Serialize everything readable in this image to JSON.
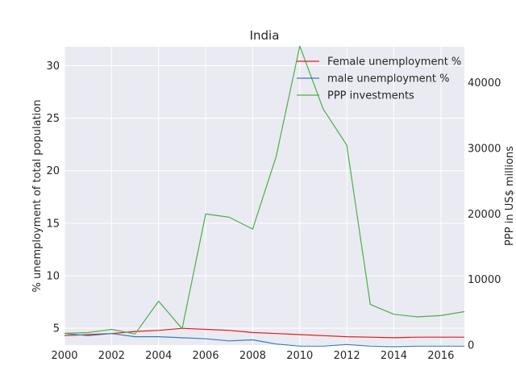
{
  "chart_data": {
    "type": "line",
    "title": "India",
    "xlabel": "",
    "ylabel": "% unemployment of total population",
    "y2label": "PPP in US$ millions",
    "x": [
      2000,
      2001,
      2002,
      2003,
      2004,
      2005,
      2006,
      2007,
      2008,
      2009,
      2010,
      2011,
      2012,
      2013,
      2014,
      2015,
      2016,
      2017
    ],
    "xlim": [
      2000,
      2017
    ],
    "ylim": [
      3.4,
      31.8
    ],
    "y2lim": [
      0,
      45500
    ],
    "xticks": [
      "2000",
      "2002",
      "2004",
      "2006",
      "2008",
      "2010",
      "2012",
      "2014",
      "2016"
    ],
    "yticks": [
      "5",
      "10",
      "15",
      "20",
      "25",
      "30"
    ],
    "y2ticks": [
      "0",
      "10000",
      "20000",
      "30000",
      "40000"
    ],
    "grid": true,
    "legend_position": "top-right",
    "series": [
      {
        "name": "Female unemployment %",
        "axis": "left",
        "color": "#e41a1c",
        "values": [
          4.3,
          4.4,
          4.5,
          4.7,
          4.8,
          5.0,
          4.9,
          4.8,
          4.6,
          4.5,
          4.4,
          4.3,
          4.2,
          4.15,
          4.1,
          4.15,
          4.15,
          4.15
        ]
      },
      {
        "name": "male unemployment %",
        "axis": "left",
        "color": "#377eb8",
        "values": [
          4.5,
          4.3,
          4.5,
          4.2,
          4.2,
          4.1,
          4.0,
          3.8,
          3.9,
          3.5,
          3.3,
          3.3,
          3.45,
          3.3,
          3.25,
          3.3,
          3.3,
          3.3
        ]
      },
      {
        "name": "PPP investments",
        "axis": "right",
        "color": "#4daf4a",
        "values": [
          1800,
          1900,
          2400,
          1700,
          6700,
          2500,
          20000,
          19500,
          17700,
          28800,
          45600,
          36000,
          30500,
          6200,
          4700,
          4300,
          4500,
          5100
        ]
      }
    ]
  }
}
